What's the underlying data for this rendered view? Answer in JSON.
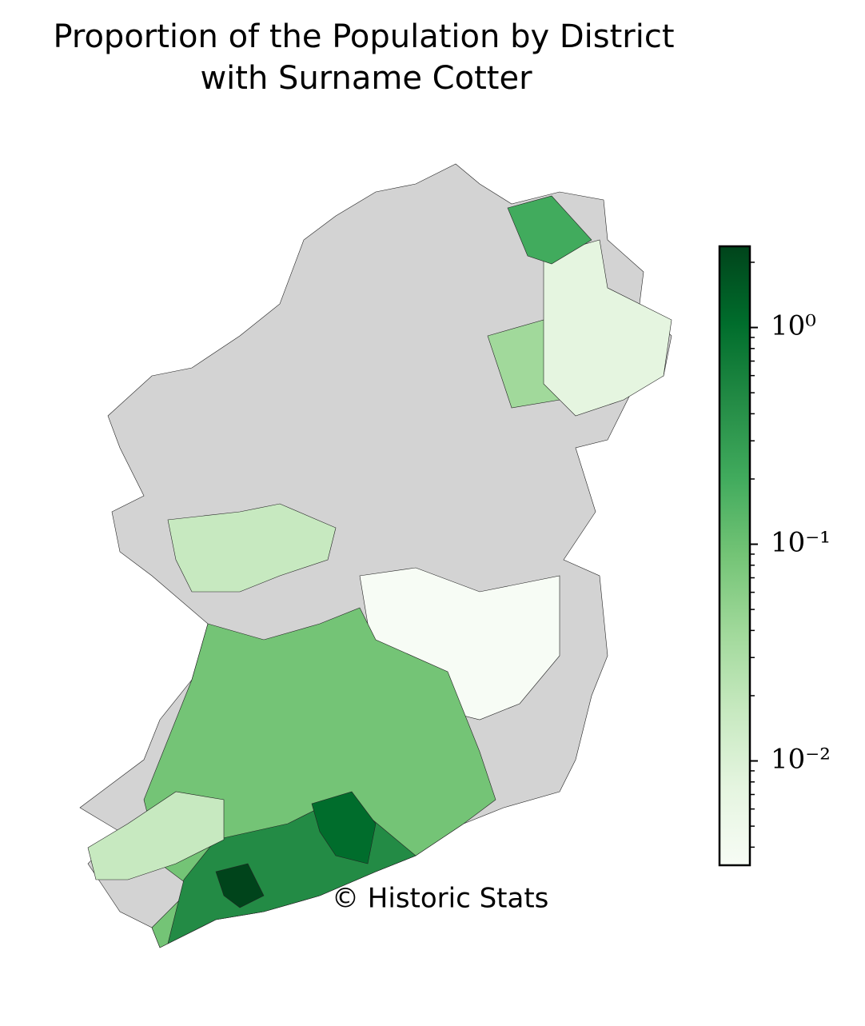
{
  "chart_data": {
    "type": "choropleth",
    "title_lines": [
      "Proportion of the Population by District",
      "with Surname Cotter"
    ],
    "annotation": "© Historic Stats",
    "colorbar": {
      "log_scale": true,
      "lim": [
        0.0033,
        2.37
      ],
      "ticks": [
        {
          "value": 1,
          "label": "10⁰"
        },
        {
          "value": 0.1,
          "label": "10⁻¹"
        },
        {
          "value": 0.01,
          "label": "10⁻²"
        }
      ],
      "minor_ticks": [
        0.004,
        0.005,
        0.006,
        0.007,
        0.008,
        0.009,
        0.02,
        0.03,
        0.04,
        0.05,
        0.06,
        0.07,
        0.08,
        0.09,
        0.2,
        0.3,
        0.4,
        0.5,
        0.6,
        0.7,
        0.8,
        0.9,
        2
      ],
      "colors": [
        "#f7fcf5",
        "#e5f5e0",
        "#c7e9c0",
        "#a1d99b",
        "#74c476",
        "#41ab5d",
        "#238b45",
        "#006d2c",
        "#00441b"
      ]
    },
    "missing_color": "#d3d3d3"
  }
}
